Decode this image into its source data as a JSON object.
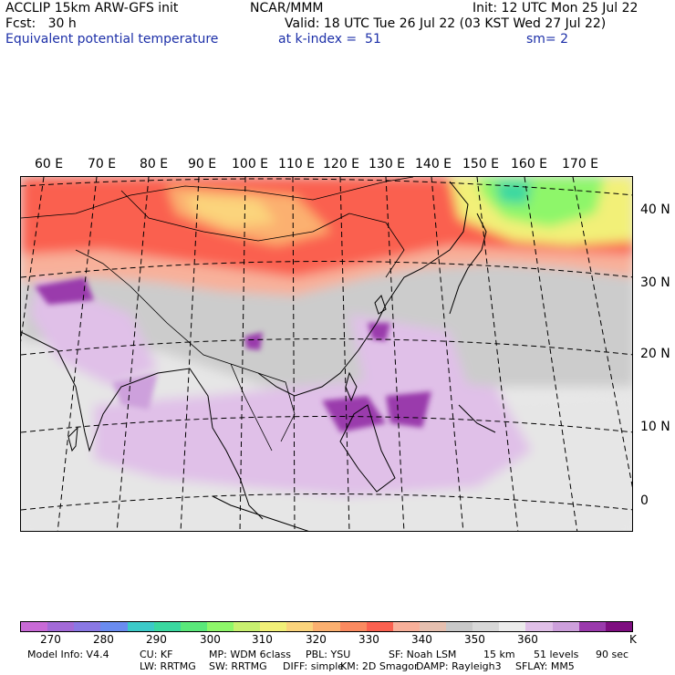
{
  "header": {
    "title_left": "ACCLIP 15km ARW-GFS init",
    "center_org": "NCAR/MMM",
    "init": "Init: 12 UTC Mon 25 Jul 22",
    "fcst": "Fcst:   30 h",
    "valid": "Valid: 18 UTC Tue 26 Jul 22 (03 KST Wed 27 Jul 22)",
    "variable": "Equivalent potential temperature",
    "level": "at k-index =  51",
    "smoothing": "sm= 2"
  },
  "lon_labels": [
    "60 E",
    "70 E",
    "80 E",
    "90 E",
    "100 E",
    "110 E",
    "120 E",
    "130 E",
    "140 E",
    "150 E",
    "160 E",
    "170 E"
  ],
  "lat_labels": [
    "40 N",
    "30 N",
    "20 N",
    "10 N",
    "0"
  ],
  "colorbar": {
    "colors": [
      "#c86ad6",
      "#a36ad8",
      "#8a78e4",
      "#6a8cf0",
      "#3ccac8",
      "#3ad8a0",
      "#5ae87a",
      "#8ef66a",
      "#c8f070",
      "#f2f078",
      "#fbd47c",
      "#fbb070",
      "#fa8a60",
      "#fa6150",
      "#f8b09a",
      "#e6c0b0",
      "#c8c8c8",
      "#d8d8d8",
      "#ececec",
      "#e0c0e8",
      "#cda0dc",
      "#9a3aac",
      "#7e0e80"
    ],
    "tick_labels": [
      "270",
      "280",
      "290",
      "300",
      "310",
      "320",
      "330",
      "340",
      "350",
      "360"
    ],
    "unit": "K"
  },
  "footer": {
    "line1": [
      "Model Info: V4.4",
      "CU: KF",
      "MP: WDM 6class",
      "PBL: YSU",
      "SF: Noah LSM",
      "15 km",
      "51 levels",
      "90 sec"
    ],
    "line2": [
      "LW: RRTMG",
      "SW: RRTMG",
      "DIFF: simple",
      "KM: 2D Smagor",
      "DAMP: Rayleigh3",
      "SFLAY: MM5"
    ]
  }
}
